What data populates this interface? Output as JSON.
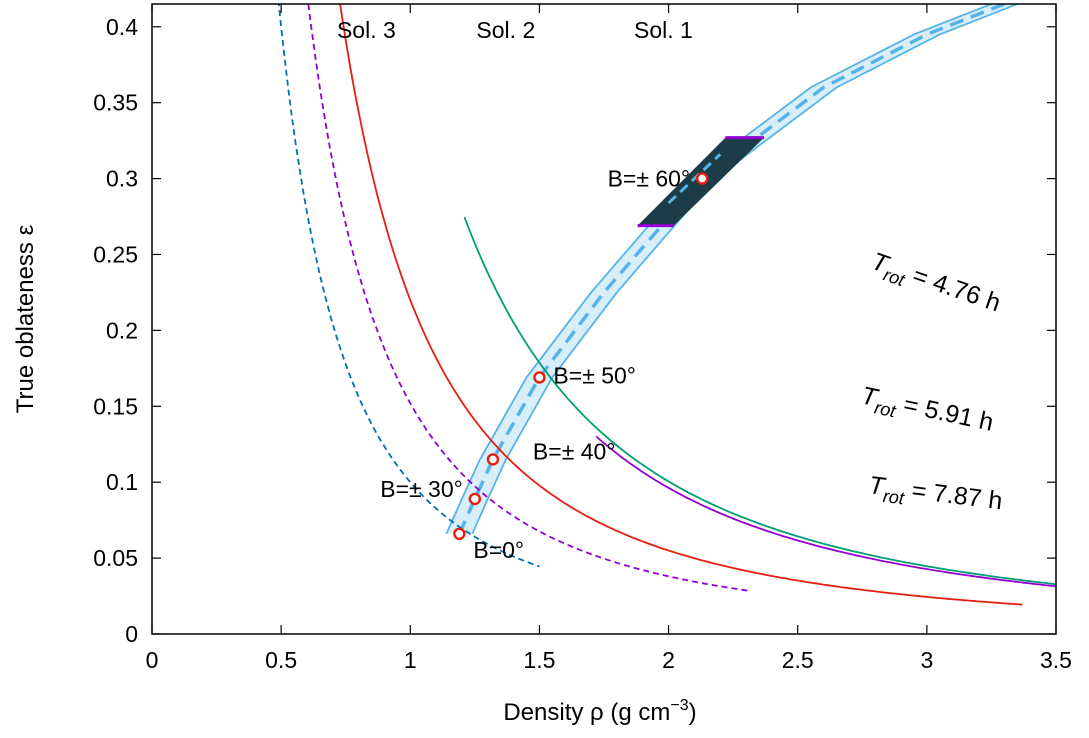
{
  "chart_data": {
    "type": "line",
    "xlabel": "Density ρ (g cm",
    "xlabel_exponent": "−3",
    "xlabel_close": ")",
    "ylabel": "True oblateness ε",
    "xlim": [
      0,
      3.5
    ],
    "ylim": [
      0,
      0.415
    ],
    "xticks": [
      0,
      0.5,
      1,
      1.5,
      2,
      2.5,
      3,
      3.5
    ],
    "xtick_labels": [
      "0",
      "0.5",
      "1",
      "1.5",
      "2",
      "2.5",
      "3",
      "3.5"
    ],
    "yticks": [
      0,
      0.05,
      0.1,
      0.15,
      0.2,
      0.25,
      0.3,
      0.35,
      0.4
    ],
    "ytick_labels": [
      "0",
      "0.05",
      "0.1",
      "0.15",
      "0.2",
      "0.25",
      "0.3",
      "0.35",
      "0.4"
    ],
    "grid": false,
    "series": [
      {
        "name": "Sol. 1",
        "period_h": 4.76,
        "color": "#9400d3",
        "style": "solid",
        "x_range": [
          1.72,
          3.5
        ],
        "k": 0.385
      },
      {
        "name": "Sol. 2",
        "period_h": 5.91,
        "color": "#009e73",
        "style": "solid",
        "x_range": [
          1.21,
          3.5
        ],
        "k": 0.402
      },
      {
        "name": "Sol. 3",
        "period_h": 7.87,
        "color": "#e51e10",
        "style": "solid",
        "x_range": [
          0.63,
          3.37
        ],
        "k": 0.22
      },
      {
        "color": "#9400d3",
        "style": "dashed",
        "x_range": [
          0.43,
          2.31
        ],
        "k": 0.152
      },
      {
        "color": "#0072b2",
        "style": "dashed",
        "x_range": [
          0.27,
          1.5
        ],
        "k": 0.1
      }
    ],
    "curve_labels": [
      {
        "text": "Sol. 1",
        "x": 1.98,
        "y": 0.398
      },
      {
        "text": "Sol. 2",
        "x": 1.37,
        "y": 0.398
      },
      {
        "text": "Sol. 3",
        "x": 0.83,
        "y": 0.398
      }
    ],
    "rotation_labels": [
      {
        "T": "T",
        "sub": "rot",
        "value": " = 4.76 h",
        "color_series": 0
      },
      {
        "T": "T",
        "sub": "rot",
        "value": " = 5.91 h",
        "color_series": 1
      },
      {
        "T": "T",
        "sub": "rot",
        "value": " = 7.87 h",
        "color_series": 2
      }
    ],
    "band": {
      "color": "#56b4e9",
      "center": [
        [
          1.19,
          0.066
        ],
        [
          1.25,
          0.089
        ],
        [
          1.32,
          0.115
        ],
        [
          1.5,
          0.169
        ],
        [
          1.75,
          0.225
        ],
        [
          2.13,
          0.3
        ],
        [
          2.6,
          0.36
        ],
        [
          3.0,
          0.395
        ],
        [
          3.3,
          0.415
        ]
      ],
      "half_width_x": 0.05
    },
    "intersection_region": {
      "color": "#1c3d47",
      "top": [
        [
          2.22,
          0.327
        ],
        [
          2.37,
          0.327
        ]
      ],
      "bottom": [
        [
          1.88,
          0.269
        ],
        [
          2.02,
          0.269
        ]
      ]
    },
    "points": [
      {
        "x": 1.19,
        "y": 0.066,
        "label": "B=0°"
      },
      {
        "x": 1.25,
        "y": 0.089,
        "label": "B=± 30°"
      },
      {
        "x": 1.32,
        "y": 0.115,
        "label": "B=± 40°"
      },
      {
        "x": 1.5,
        "y": 0.169,
        "label": "B=± 50°"
      },
      {
        "x": 2.13,
        "y": 0.3,
        "label": "B=± 60°"
      }
    ],
    "point_color": "#e51e10"
  }
}
